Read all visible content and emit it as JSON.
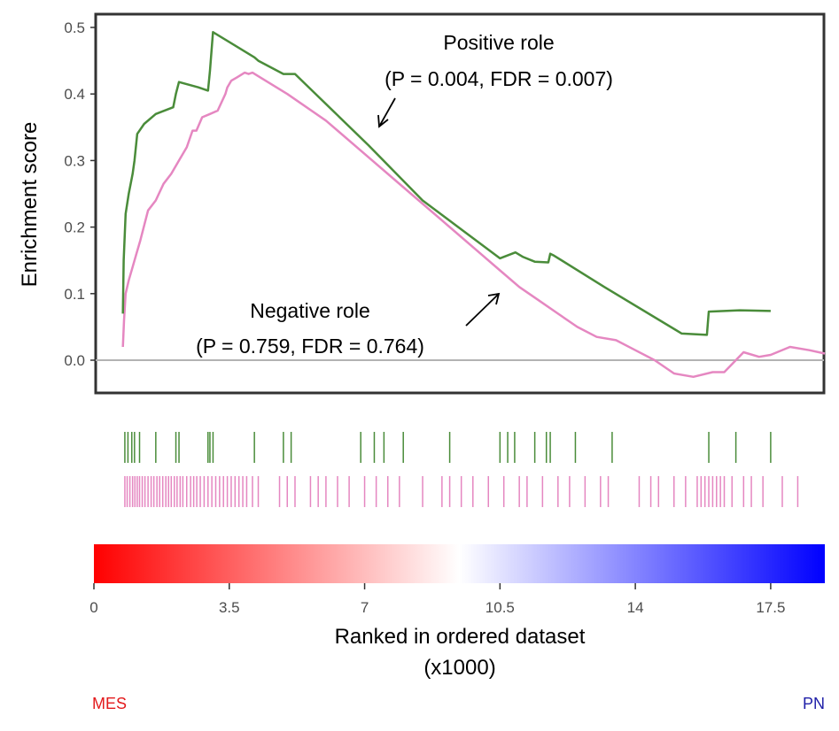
{
  "chart_data": {
    "type": "line",
    "ylabel": "Enrichment score",
    "xlabel_line1": "Ranked in ordered dataset",
    "xlabel_line2": "(x1000)",
    "ylim": [
      -0.05,
      0.51
    ],
    "xlim": [
      0,
      18.9
    ],
    "yticks": [
      0.0,
      0.1,
      0.2,
      0.3,
      0.4,
      0.5
    ],
    "ytick_labels": [
      "0.0",
      "0.1",
      "0.2",
      "0.3",
      "0.4",
      "0.5"
    ],
    "xticks": [
      0,
      3.5,
      7,
      10.5,
      14,
      17.5
    ],
    "xtick_labels": [
      "0",
      "3.5",
      "7",
      "10.5",
      "14",
      "17.5"
    ],
    "zero_line": true,
    "series": [
      {
        "name": "Positive role",
        "color": "#4a8c3a",
        "x": [
          0.75,
          0.77,
          0.82,
          0.9,
          1.0,
          1.05,
          1.12,
          1.3,
          1.6,
          2.05,
          2.12,
          2.2,
          2.7,
          2.95,
          3.0,
          3.08,
          4.15,
          4.25,
          4.9,
          5.2,
          7.1,
          8.5,
          10.5,
          10.9,
          11.1,
          11.4,
          11.75,
          11.8,
          11.9,
          13.2,
          15.2,
          15.85,
          15.9,
          16.7,
          17.5
        ],
        "y": [
          0.07,
          0.15,
          0.22,
          0.25,
          0.28,
          0.3,
          0.34,
          0.355,
          0.37,
          0.38,
          0.4,
          0.418,
          0.41,
          0.405,
          0.435,
          0.493,
          0.455,
          0.45,
          0.43,
          0.43,
          0.323,
          0.24,
          0.153,
          0.162,
          0.155,
          0.148,
          0.147,
          0.16,
          0.157,
          0.11,
          0.04,
          0.038,
          0.073,
          0.075,
          0.074
        ]
      },
      {
        "name": "Negative role",
        "color": "#e587c1",
        "x": [
          0.75,
          0.78,
          0.82,
          0.9,
          1.0,
          1.1,
          1.2,
          1.4,
          1.6,
          1.8,
          2.0,
          2.2,
          2.4,
          2.55,
          2.65,
          2.8,
          3.0,
          3.2,
          3.4,
          3.45,
          3.55,
          3.7,
          3.9,
          4.0,
          4.1,
          4.3,
          5.0,
          6.0,
          7.0,
          8.0,
          9.0,
          10.0,
          10.5,
          11.0,
          11.5,
          12.0,
          12.5,
          13.0,
          13.5,
          14.0,
          14.5,
          15.0,
          15.5,
          16.0,
          16.3,
          16.8,
          17.2,
          17.5,
          18.0,
          18.5,
          18.9
        ],
        "y": [
          0.02,
          0.06,
          0.1,
          0.12,
          0.14,
          0.16,
          0.18,
          0.225,
          0.24,
          0.265,
          0.28,
          0.3,
          0.32,
          0.345,
          0.345,
          0.365,
          0.37,
          0.375,
          0.4,
          0.41,
          0.42,
          0.425,
          0.432,
          0.43,
          0.432,
          0.425,
          0.4,
          0.36,
          0.31,
          0.26,
          0.21,
          0.16,
          0.135,
          0.11,
          0.09,
          0.07,
          0.05,
          0.035,
          0.03,
          0.015,
          0.0,
          -0.02,
          -0.025,
          -0.018,
          -0.018,
          0.012,
          0.005,
          0.008,
          0.02,
          0.015,
          0.01
        ]
      }
    ],
    "hits": {
      "positive": [
        0.8,
        0.88,
        0.98,
        1.05,
        1.18,
        1.6,
        2.12,
        2.2,
        2.95,
        3.0,
        3.08,
        4.15,
        4.9,
        5.1,
        6.9,
        7.25,
        7.5,
        8.0,
        9.2,
        10.5,
        10.7,
        10.88,
        11.4,
        11.7,
        11.8,
        12.45,
        13.4,
        15.9,
        16.6,
        17.5
      ],
      "negative": [
        0.8,
        0.86,
        0.93,
        1.0,
        1.06,
        1.12,
        1.18,
        1.25,
        1.32,
        1.4,
        1.48,
        1.55,
        1.63,
        1.7,
        1.78,
        1.86,
        1.93,
        2.0,
        2.08,
        2.15,
        2.23,
        2.3,
        2.4,
        2.5,
        2.58,
        2.66,
        2.75,
        2.85,
        2.95,
        3.05,
        3.15,
        3.25,
        3.35,
        3.45,
        3.55,
        3.65,
        3.75,
        3.85,
        3.95,
        4.1,
        4.25,
        4.8,
        5.0,
        5.2,
        5.6,
        5.8,
        6.0,
        6.3,
        6.6,
        7.0,
        7.3,
        7.6,
        7.9,
        8.5,
        9.0,
        9.2,
        9.5,
        9.8,
        10.2,
        10.6,
        11.0,
        11.2,
        11.6,
        12.0,
        12.3,
        12.7,
        13.1,
        13.3,
        14.1,
        14.4,
        14.6,
        15.0,
        15.3,
        15.6,
        15.7,
        15.8,
        15.9,
        16.0,
        16.1,
        16.2,
        16.3,
        16.5,
        16.8,
        17.0,
        17.3,
        17.8,
        18.2
      ]
    },
    "annotations": [
      {
        "line1": "Positive role",
        "line2": "(P = 0.004, FDR = 0.007)"
      },
      {
        "line1": "Negative role",
        "line2": "(P = 0.759, FDR = 0.764)"
      }
    ],
    "colorbar": {
      "from": "#ff0000",
      "mid": "#ffffff",
      "to": "#0000ff"
    },
    "end_labels": {
      "left": {
        "text": "MES",
        "color": "#e31a1c"
      },
      "right": {
        "text": "PN",
        "color": "#1f1fa8"
      }
    }
  }
}
